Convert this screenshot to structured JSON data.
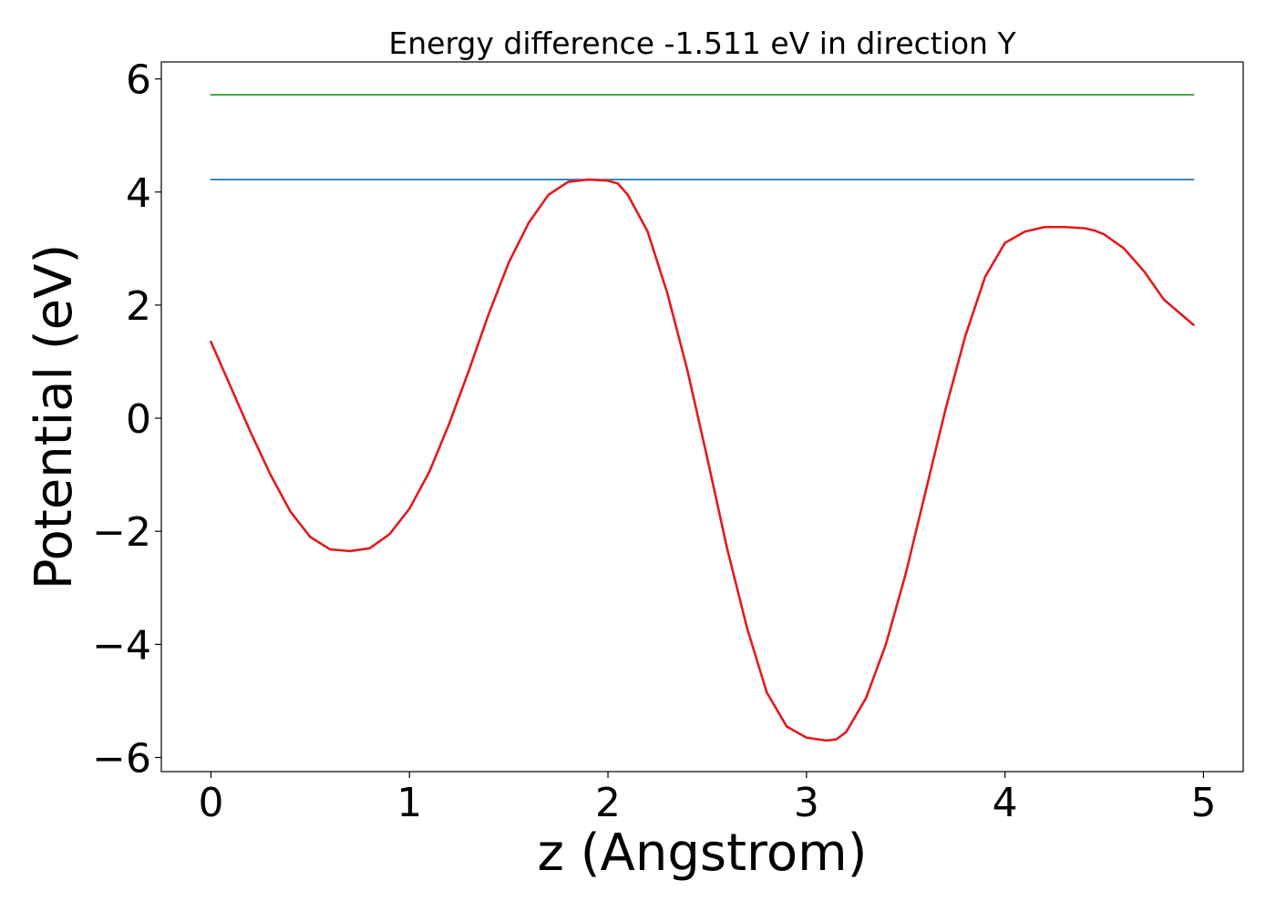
{
  "chart_data": {
    "type": "line",
    "title": "Energy difference -1.511 eV in direction Y",
    "xlabel": "z (Angstrom)",
    "ylabel": "Potential (eV)",
    "xlim": [
      -0.25,
      5.2
    ],
    "ylim": [
      -6.25,
      6.3
    ],
    "x_ticks": [
      0,
      1,
      2,
      3,
      4,
      5
    ],
    "x_tick_labels": [
      "0",
      "1",
      "2",
      "3",
      "4",
      "5"
    ],
    "y_ticks": [
      6,
      4,
      2,
      0,
      -2,
      -4,
      -6
    ],
    "y_tick_labels": [
      "6",
      "4",
      "2",
      "0",
      "−2",
      "−4",
      "−6"
    ],
    "grid": false,
    "legend": "none",
    "series": [
      {
        "color": "#2ca02c",
        "x": [
          0.0,
          4.95
        ],
        "y": [
          5.72,
          5.72
        ]
      },
      {
        "color": "#1f77b4",
        "x": [
          0.0,
          4.95
        ],
        "y": [
          4.22,
          4.22
        ]
      },
      {
        "color": "#e31a1c",
        "x": [
          0.0,
          0.1,
          0.2,
          0.3,
          0.4,
          0.5,
          0.6,
          0.7,
          0.8,
          0.9,
          1.0,
          1.1,
          1.2,
          1.3,
          1.4,
          1.5,
          1.6,
          1.7,
          1.8,
          1.9,
          2.0,
          2.05,
          2.1,
          2.2,
          2.3,
          2.4,
          2.5,
          2.6,
          2.7,
          2.8,
          2.9,
          3.0,
          3.1,
          3.15,
          3.2,
          3.3,
          3.4,
          3.5,
          3.6,
          3.7,
          3.8,
          3.9,
          4.0,
          4.1,
          4.2,
          4.3,
          4.4,
          4.45,
          4.5,
          4.6,
          4.7,
          4.8,
          4.95
        ],
        "y": [
          1.35,
          0.55,
          -0.25,
          -1.0,
          -1.65,
          -2.1,
          -2.32,
          -2.35,
          -2.3,
          -2.05,
          -1.6,
          -0.95,
          -0.1,
          0.85,
          1.85,
          2.75,
          3.45,
          3.95,
          4.18,
          4.22,
          4.2,
          4.15,
          3.95,
          3.3,
          2.2,
          0.85,
          -0.7,
          -2.3,
          -3.7,
          -4.85,
          -5.45,
          -5.65,
          -5.7,
          -5.68,
          -5.55,
          -4.95,
          -4.0,
          -2.75,
          -1.3,
          0.15,
          1.45,
          2.5,
          3.1,
          3.3,
          3.38,
          3.38,
          3.36,
          3.32,
          3.25,
          3.0,
          2.6,
          2.1,
          1.65
        ]
      }
    ]
  }
}
